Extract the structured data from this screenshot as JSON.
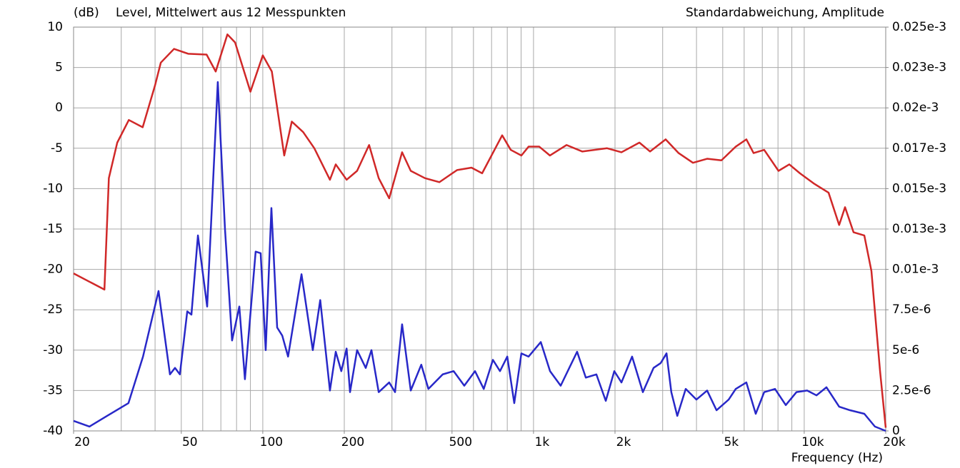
{
  "chart_data": {
    "type": "line",
    "ylabel": "(dB)",
    "xlabel": "Frequency  (Hz)",
    "xscale": "log",
    "xlim": [
      20,
      20000
    ],
    "xticks": [
      20,
      50,
      100,
      200,
      500,
      {
        "value": 1000,
        "label": "1k"
      },
      {
        "value": 2000,
        "label": "2k"
      },
      {
        "value": 5000,
        "label": "5k"
      },
      {
        "value": 10000,
        "label": "10k"
      },
      {
        "value": 20000,
        "label": "20k"
      }
    ],
    "xgrid": [
      20,
      30,
      40,
      50,
      60,
      70,
      80,
      90,
      100,
      200,
      300,
      400,
      500,
      600,
      700,
      800,
      900,
      1000,
      2000,
      3000,
      4000,
      5000,
      6000,
      7000,
      8000,
      9000,
      10000,
      20000
    ],
    "ylim": [
      -40,
      10
    ],
    "yticks": [
      10,
      5,
      0,
      -5,
      -10,
      -15,
      -20,
      -25,
      -30,
      -35,
      -40
    ],
    "y2lim": [
      0,
      2.5e-05
    ],
    "y2ticks": [
      {
        "value": 2.5e-05,
        "label": "0.025e-3"
      },
      {
        "value": 2.25e-05,
        "label": "0.023e-3"
      },
      {
        "value": 2e-05,
        "label": "0.02e-3"
      },
      {
        "value": 1.75e-05,
        "label": "0.017e-3"
      },
      {
        "value": 1.5e-05,
        "label": "0.015e-3"
      },
      {
        "value": 1.25e-05,
        "label": "0.013e-3"
      },
      {
        "value": 1e-05,
        "label": "0.01e-3"
      },
      {
        "value": 7.5e-06,
        "label": "7.5e-6"
      },
      {
        "value": 5e-06,
        "label": "5e-6"
      },
      {
        "value": 2.5e-06,
        "label": "2.5e-6"
      },
      0
    ],
    "grid": true,
    "series": [
      {
        "name": "Level, Mittelwert aus 12 Messpunkten",
        "color": "#d02828",
        "axis": "y",
        "x": [
          20,
          26,
          27,
          29,
          32,
          36,
          40,
          42,
          47,
          53,
          62,
          67,
          74,
          79,
          90,
          100,
          108,
          120,
          128,
          141,
          155,
          177,
          186,
          204,
          223,
          247,
          268,
          293,
          327,
          352,
          397,
          449,
          522,
          590,
          646,
          766,
          824,
          902,
          959,
          1050,
          1150,
          1324,
          1513,
          1870,
          2113,
          2461,
          2694,
          3077,
          3436,
          3881,
          4378,
          4945,
          5585,
          6113,
          6500,
          7113,
          8034,
          8807,
          9640,
          10890,
          12300,
          13460,
          14150,
          15210,
          16670,
          17710,
          19060,
          20000
        ],
        "values": [
          -20.5,
          -22.5,
          -8.7,
          -4.3,
          -1.5,
          -2.4,
          2.8,
          5.6,
          7.3,
          6.7,
          6.6,
          4.5,
          9.1,
          8.1,
          2,
          6.5,
          4.5,
          -5.9,
          -1.7,
          -3,
          -5,
          -8.9,
          -7,
          -8.9,
          -7.8,
          -4.6,
          -8.7,
          -11.2,
          -5.5,
          -7.8,
          -8.7,
          -9.2,
          -7.7,
          -7.4,
          -8.1,
          -3.4,
          -5.2,
          -5.9,
          -4.8,
          -4.8,
          -5.9,
          -4.6,
          -5.4,
          -5,
          -5.5,
          -4.3,
          -5.4,
          -3.9,
          -5.6,
          -6.8,
          -6.3,
          -6.5,
          -4.8,
          -3.9,
          -5.6,
          -5.2,
          -7.8,
          -7,
          -8.1,
          -9.4,
          -10.5,
          -14.5,
          -12.3,
          -15.4,
          -15.8,
          -20.2,
          -32.6,
          -39.6
        ]
      },
      {
        "name": "Standardabweichung, Amplitude",
        "color": "#2828c8",
        "axis": "y2",
        "x": [
          20,
          22.9,
          26.6,
          31.9,
          36.1,
          41.2,
          45.4,
          47.4,
          49.4,
          52.6,
          54.5,
          57.6,
          62.3,
          68.2,
          72.5,
          77,
          81.9,
          85.9,
          94.1,
          98.2,
          102.5,
          107.6,
          113,
          118,
          124,
          139,
          153,
          163,
          177,
          186,
          195,
          204,
          210,
          223,
          240,
          252,
          268,
          293,
          308,
          327,
          352,
          385,
          409,
          462,
          507,
          555,
          608,
          655,
          708,
          752,
          800,
          849,
          902,
          959,
          1064,
          1151,
          1260,
          1449,
          1560,
          1707,
          1849,
          1988,
          2113,
          2313,
          2535,
          2776,
          2950,
          3100,
          3229,
          3397,
          3650,
          3998,
          4378,
          4743,
          5260,
          5585,
          6113,
          6620,
          7113,
          7800,
          8547,
          9360,
          10250,
          11100,
          12080,
          13460,
          14760,
          16670,
          18240,
          20000
        ],
        "values": [
          6.2e-07,
          2.7e-07,
          9.3e-07,
          1.72e-06,
          4.6e-06,
          8.66e-06,
          3.5e-06,
          3.9e-06,
          3.5e-06,
          7.4e-06,
          7.2e-06,
          1.21e-05,
          7.7e-06,
          2.16e-05,
          1.25e-05,
          5.6e-06,
          7.7e-06,
          3.2e-06,
          1.11e-05,
          1.1e-05,
          5e-06,
          1.38e-05,
          6.4e-06,
          5.9e-06,
          4.6e-06,
          9.7e-06,
          5e-06,
          8.1e-06,
          2.5e-06,
          4.9e-06,
          3.7e-06,
          5.1e-06,
          2.4e-06,
          5e-06,
          3.9e-06,
          5e-06,
          2.4e-06,
          3e-06,
          2.4e-06,
          6.6e-06,
          2.5e-06,
          4.1e-06,
          2.6e-06,
          3.5e-06,
          3.7e-06,
          2.8e-06,
          3.7e-06,
          2.6e-06,
          4.4e-06,
          3.7e-06,
          4.6e-06,
          1.72e-06,
          4.8e-06,
          4.6e-06,
          5.5e-06,
          3.7e-06,
          2.8e-06,
          4.9e-06,
          3.3e-06,
          3.5e-06,
          1.86e-06,
          3.7e-06,
          3e-06,
          4.6e-06,
          2.4e-06,
          3.9e-06,
          4.2e-06,
          4.8e-06,
          2.4e-06,
          9.3e-07,
          2.6e-06,
          1.94e-06,
          2.5e-06,
          1.28e-06,
          1.94e-06,
          2.6e-06,
          3e-06,
          1.06e-06,
          2.4e-06,
          2.6e-06,
          1.6e-06,
          2.4e-06,
          2.5e-06,
          2.2e-06,
          2.7e-06,
          1.5e-06,
          1.28e-06,
          1.06e-06,
          2.7e-07,
          0
        ]
      }
    ]
  }
}
